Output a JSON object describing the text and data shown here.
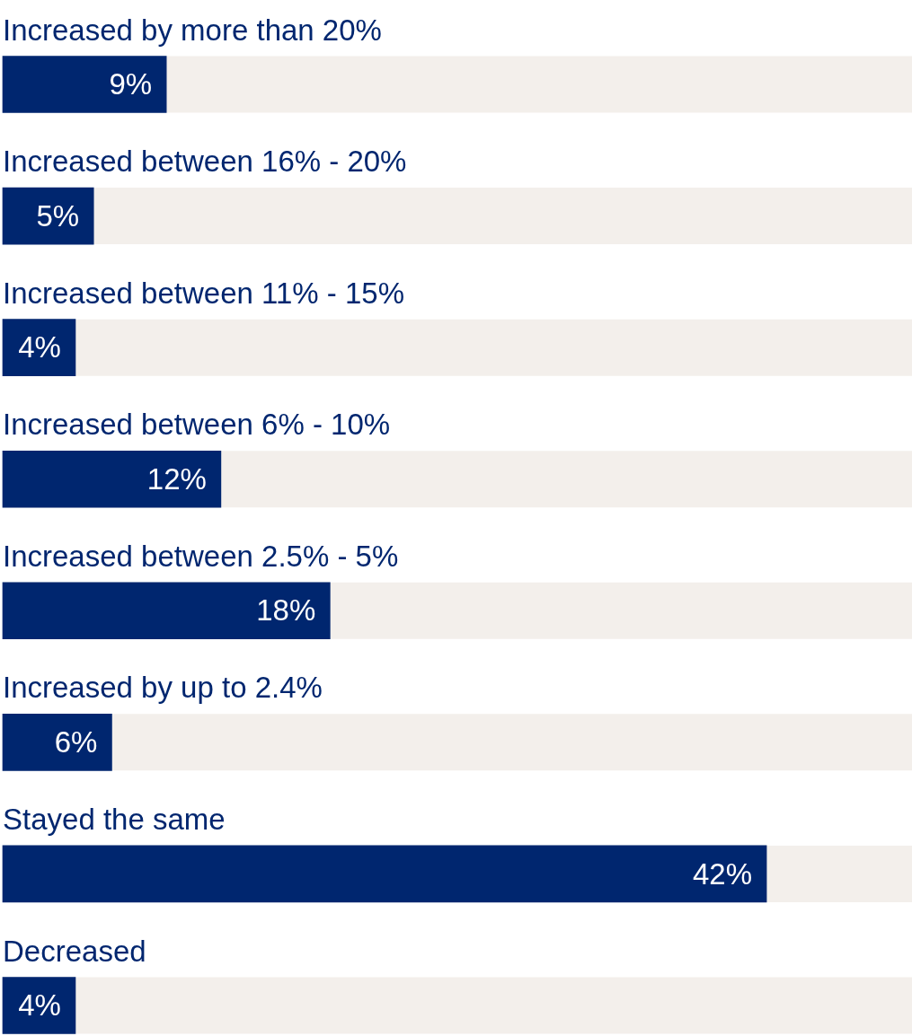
{
  "chart_data": {
    "type": "bar",
    "orientation": "horizontal",
    "categories": [
      "Increased by more than 20%",
      "Increased between 16% - 20%",
      "Increased between 11% - 15%",
      "Increased between 6% - 10%",
      "Increased between 2.5% - 5%",
      "Increased by up to 2.4%",
      "Stayed the same",
      "Decreased"
    ],
    "values": [
      9,
      5,
      4,
      12,
      18,
      6,
      42,
      4
    ],
    "value_labels": [
      "9%",
      "5%",
      "4%",
      "12%",
      "18%",
      "6%",
      "42%",
      "4%"
    ],
    "color": "#00266f",
    "xlim": [
      0,
      50
    ]
  }
}
